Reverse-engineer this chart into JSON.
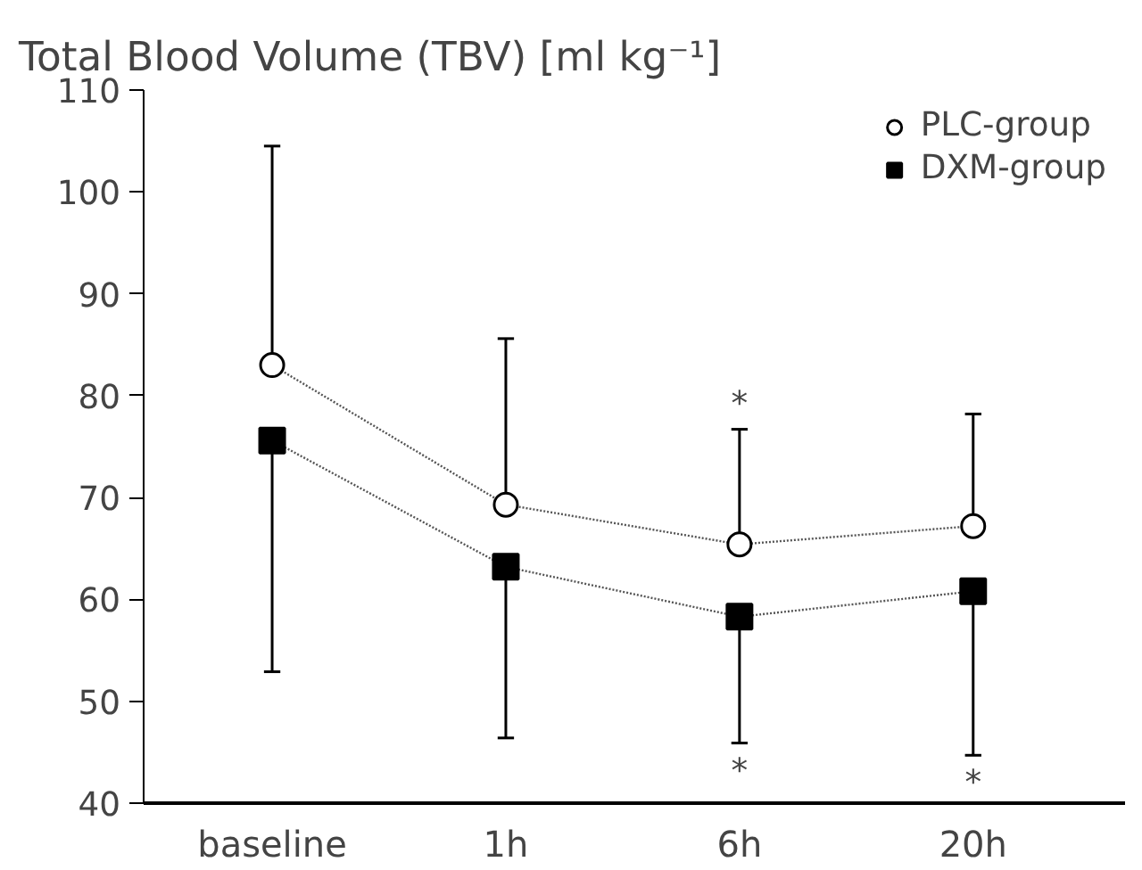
{
  "chart_data": {
    "type": "line",
    "title": "Total Blood Volume (TBV) [ml kg⁻¹]",
    "categories": [
      "baseline",
      "1h",
      "6h",
      "20h"
    ],
    "ylim": [
      40,
      110
    ],
    "yticks": [
      40,
      50,
      60,
      70,
      80,
      90,
      100,
      110
    ],
    "grid": false,
    "legend": "top right",
    "line_style": "dotted",
    "series": [
      {
        "name": "PLC-group",
        "color": "#000000",
        "marker": "circle",
        "values": [
          83.0,
          69.3,
          65.4,
          67.2
        ],
        "errors": [
          [
            83.0,
            104.5
          ],
          [
            69.3,
            85.6
          ],
          [
            65.4,
            76.7
          ],
          [
            67.2,
            78.2
          ]
        ]
      },
      {
        "name": "DXM-group",
        "color": "#000000",
        "marker": "square",
        "values": [
          75.6,
          63.2,
          58.3,
          60.8
        ],
        "errors": [
          [
            52.9,
            75.6
          ],
          [
            46.4,
            63.2
          ],
          [
            45.9,
            58.3
          ],
          [
            44.7,
            60.8
          ]
        ]
      }
    ],
    "annotations": [
      {
        "text": "*",
        "x": "6h",
        "y": 76.7
      },
      {
        "text": "*",
        "x": "6h",
        "y": 45.9
      },
      {
        "text": "*",
        "x": "20h",
        "y": 44.7
      }
    ]
  }
}
